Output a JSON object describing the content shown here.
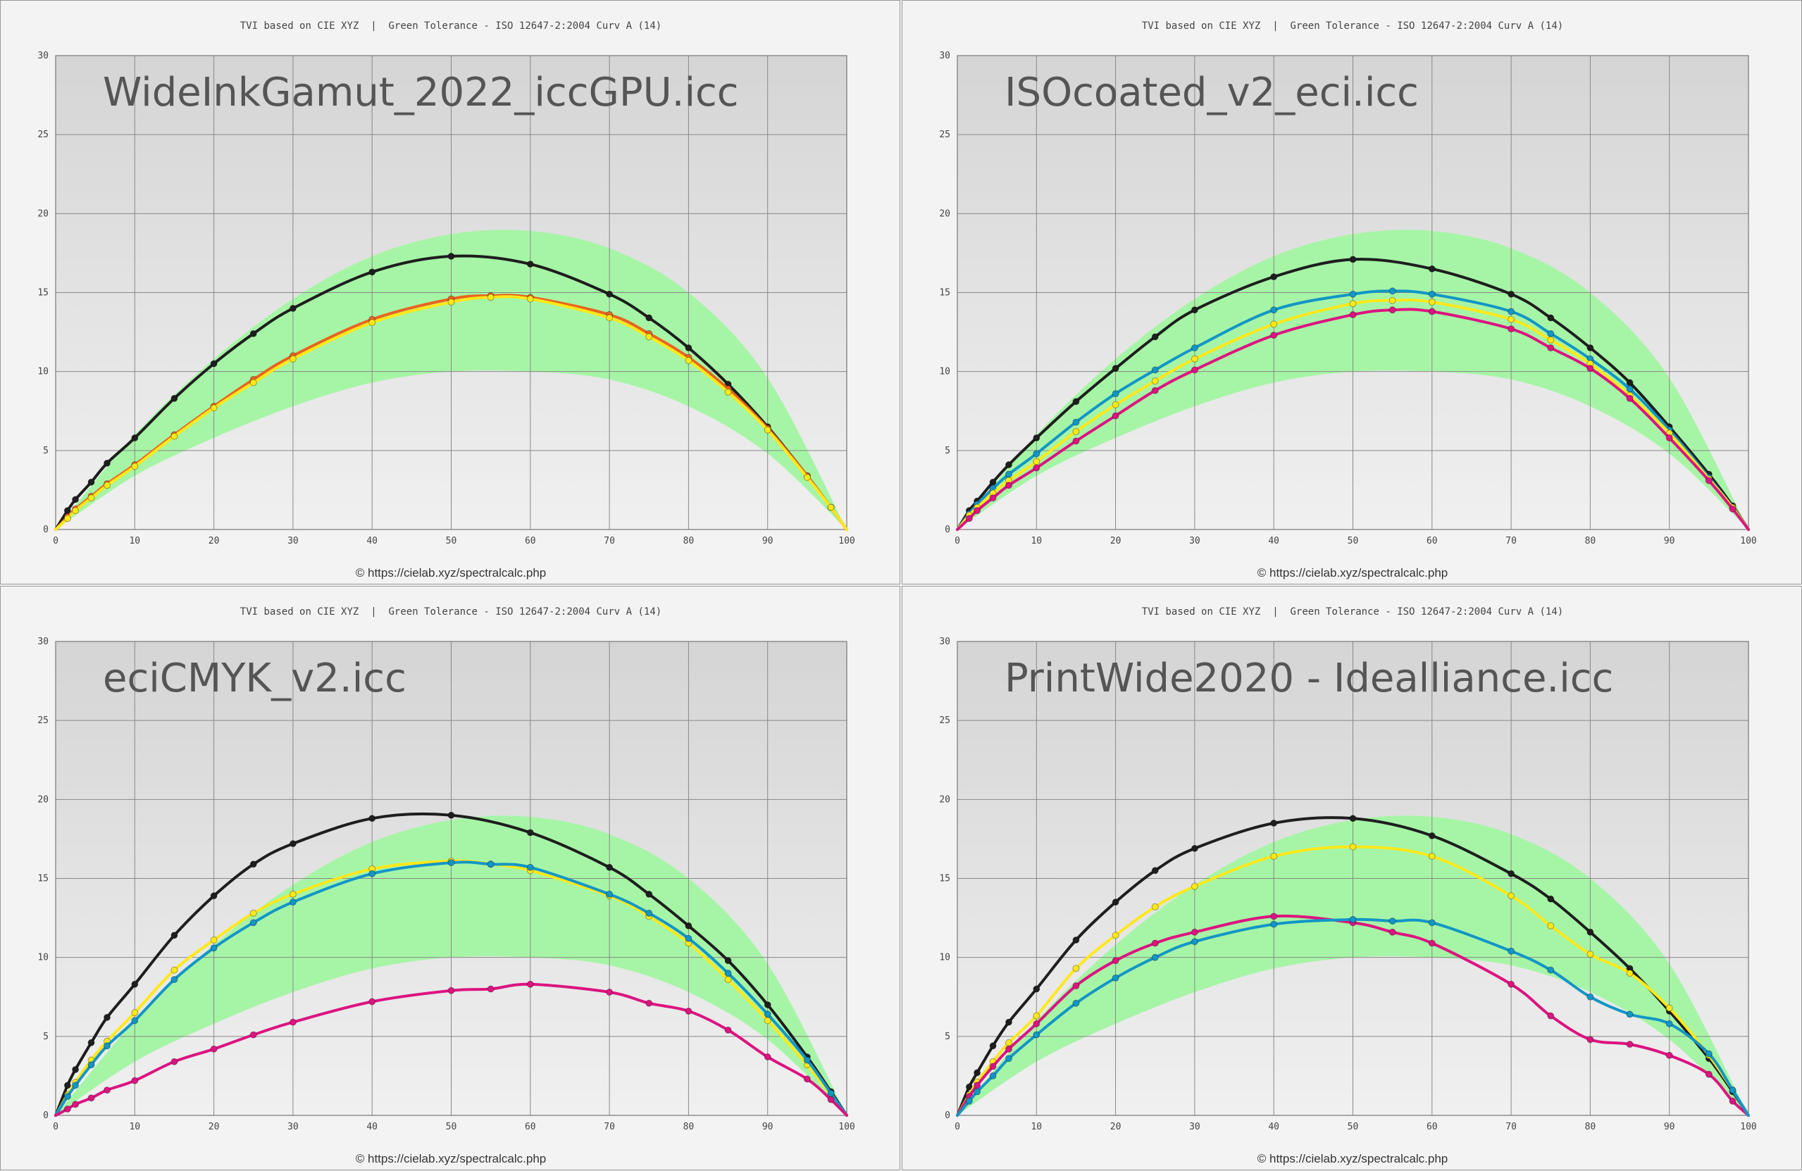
{
  "header_text": "TVI based on CIE XYZ  |  Green Tolerance - ISO 12647-2:2004 Curv A (14)",
  "credit_text": "© https://cielab.xyz/spectralcalc.php",
  "x_ticks": [
    0,
    10,
    20,
    30,
    40,
    50,
    60,
    70,
    80,
    90,
    100
  ],
  "y_ticks": [
    0,
    5,
    10,
    15,
    20,
    25,
    30
  ],
  "colors": {
    "black": "#1e1e1e",
    "cyan": "#1296c6",
    "magenta": "#dc1480",
    "yellow": "#ffe81a",
    "orange_line": "#e8641e",
    "tolerance": "#a6f5a6",
    "plot_top": "#d5d5d5",
    "plot_bottom": "#f0f0f0",
    "gridline": "#888888"
  },
  "chart_data": [
    {
      "type": "line",
      "title": "WideInkGamut_2022_iccGPU.icc",
      "xlim": [
        0,
        100
      ],
      "ylim": [
        0,
        30
      ],
      "tolerance_band": {
        "x": [
          0,
          10,
          20,
          30,
          40,
          50,
          60,
          70,
          80,
          90,
          100
        ],
        "lower": [
          0,
          3.4,
          5.8,
          7.8,
          9.3,
          10.0,
          10.0,
          9.5,
          7.8,
          4.8,
          0
        ],
        "upper": [
          0,
          6.0,
          10.8,
          14.6,
          17.3,
          18.7,
          18.9,
          17.8,
          15.0,
          9.6,
          0
        ]
      },
      "series": [
        {
          "color": "black",
          "x": [
            0,
            1.5,
            2.5,
            4.5,
            6.5,
            10,
            15,
            20,
            25,
            30,
            40,
            50,
            60,
            70,
            75,
            80,
            85,
            90,
            95,
            98,
            100
          ],
          "y": [
            0,
            1.2,
            1.9,
            3.0,
            4.2,
            5.8,
            8.3,
            10.5,
            12.4,
            14.0,
            16.3,
            17.3,
            16.8,
            14.9,
            13.4,
            11.5,
            9.2,
            6.5,
            3.4,
            1.4,
            0
          ]
        },
        {
          "color": "orange_line",
          "x": [
            0,
            1.5,
            2.5,
            4.5,
            6.5,
            10,
            15,
            20,
            25,
            30,
            40,
            50,
            55,
            60,
            70,
            75,
            80,
            85,
            90,
            95,
            98,
            100
          ],
          "y": [
            0,
            0.8,
            1.3,
            2.1,
            2.9,
            4.1,
            6.0,
            7.8,
            9.5,
            11.0,
            13.3,
            14.6,
            14.8,
            14.7,
            13.6,
            12.4,
            10.9,
            8.9,
            6.4,
            3.4,
            1.4,
            0
          ]
        },
        {
          "color": "yellow",
          "x": [
            0,
            1.5,
            2.5,
            4.5,
            6.5,
            10,
            15,
            20,
            25,
            30,
            40,
            50,
            55,
            60,
            70,
            75,
            80,
            85,
            90,
            95,
            98,
            100
          ],
          "y": [
            0,
            0.7,
            1.2,
            2.0,
            2.8,
            4.0,
            5.9,
            7.7,
            9.3,
            10.8,
            13.1,
            14.4,
            14.7,
            14.6,
            13.4,
            12.2,
            10.7,
            8.7,
            6.3,
            3.3,
            1.4,
            0
          ]
        }
      ]
    },
    {
      "type": "line",
      "title": "ISOcoated_v2_eci.icc",
      "xlim": [
        0,
        100
      ],
      "ylim": [
        0,
        30
      ],
      "tolerance_band": {
        "x": [
          0,
          10,
          20,
          30,
          40,
          50,
          60,
          70,
          80,
          90,
          100
        ],
        "lower": [
          0,
          3.4,
          5.8,
          7.8,
          9.3,
          10.0,
          10.0,
          9.5,
          7.8,
          4.8,
          0
        ],
        "upper": [
          0,
          6.0,
          10.8,
          14.6,
          17.3,
          18.7,
          18.9,
          17.8,
          15.0,
          9.6,
          0
        ]
      },
      "series": [
        {
          "color": "black",
          "x": [
            0,
            1.5,
            2.5,
            4.5,
            6.5,
            10,
            15,
            20,
            25,
            30,
            40,
            50,
            60,
            70,
            75,
            80,
            85,
            90,
            95,
            98,
            100
          ],
          "y": [
            0,
            1.2,
            1.8,
            3.0,
            4.1,
            5.8,
            8.1,
            10.2,
            12.2,
            13.9,
            16.0,
            17.1,
            16.5,
            14.9,
            13.4,
            11.5,
            9.3,
            6.5,
            3.5,
            1.5,
            0
          ]
        },
        {
          "color": "cyan",
          "x": [
            0,
            1.5,
            2.5,
            4.5,
            6.5,
            10,
            15,
            20,
            25,
            30,
            40,
            50,
            55,
            60,
            70,
            75,
            80,
            85,
            90,
            95,
            98,
            100
          ],
          "y": [
            0,
            1.0,
            1.6,
            2.6,
            3.5,
            4.8,
            6.8,
            8.6,
            10.1,
            11.5,
            13.9,
            14.9,
            15.1,
            14.9,
            13.8,
            12.4,
            10.8,
            8.9,
            6.3,
            3.3,
            1.4,
            0
          ]
        },
        {
          "color": "yellow",
          "x": [
            0,
            1.5,
            2.5,
            4.5,
            6.5,
            10,
            15,
            20,
            25,
            30,
            40,
            50,
            55,
            60,
            70,
            75,
            80,
            85,
            90,
            95,
            98,
            100
          ],
          "y": [
            0,
            0.9,
            1.4,
            2.3,
            3.1,
            4.3,
            6.2,
            7.9,
            9.4,
            10.8,
            13.0,
            14.3,
            14.5,
            14.4,
            13.3,
            12.0,
            10.5,
            8.5,
            6.1,
            3.2,
            1.4,
            0
          ]
        },
        {
          "color": "magenta",
          "x": [
            0,
            1.5,
            2.5,
            4.5,
            6.5,
            10,
            15,
            20,
            25,
            30,
            40,
            50,
            55,
            60,
            70,
            75,
            80,
            85,
            90,
            95,
            98,
            100
          ],
          "y": [
            0,
            0.7,
            1.2,
            2.0,
            2.8,
            3.9,
            5.6,
            7.2,
            8.8,
            10.1,
            12.3,
            13.6,
            13.9,
            13.8,
            12.7,
            11.5,
            10.2,
            8.3,
            5.8,
            3.1,
            1.3,
            0
          ]
        }
      ]
    },
    {
      "type": "line",
      "title": "eciCMYK_v2.icc",
      "xlim": [
        0,
        100
      ],
      "ylim": [
        0,
        30
      ],
      "tolerance_band": {
        "x": [
          0,
          10,
          20,
          30,
          40,
          50,
          60,
          70,
          80,
          90,
          100
        ],
        "lower": [
          0,
          3.4,
          5.8,
          7.8,
          9.3,
          10.0,
          10.0,
          9.5,
          7.8,
          4.8,
          0
        ],
        "upper": [
          0,
          6.0,
          10.8,
          14.6,
          17.3,
          18.7,
          18.9,
          17.8,
          15.0,
          9.6,
          0
        ]
      },
      "series": [
        {
          "color": "black",
          "x": [
            0,
            1.5,
            2.5,
            4.5,
            6.5,
            10,
            15,
            20,
            25,
            30,
            40,
            50,
            60,
            70,
            75,
            80,
            85,
            90,
            95,
            98,
            100
          ],
          "y": [
            0,
            1.9,
            2.9,
            4.6,
            6.2,
            8.3,
            11.4,
            13.9,
            15.9,
            17.2,
            18.8,
            19.0,
            17.9,
            15.7,
            14.0,
            12.0,
            9.8,
            7.0,
            3.7,
            1.5,
            0
          ]
        },
        {
          "color": "yellow",
          "x": [
            0,
            1.5,
            2.5,
            4.5,
            6.5,
            10,
            15,
            20,
            25,
            30,
            40,
            50,
            55,
            60,
            70,
            75,
            80,
            85,
            90,
            95,
            98,
            100
          ],
          "y": [
            0,
            1.3,
            2.1,
            3.5,
            4.7,
            6.5,
            9.2,
            11.1,
            12.8,
            14.0,
            15.6,
            16.1,
            15.9,
            15.5,
            13.9,
            12.6,
            10.9,
            8.6,
            6.0,
            3.2,
            1.3,
            0
          ]
        },
        {
          "color": "cyan",
          "x": [
            0,
            1.5,
            2.5,
            4.5,
            6.5,
            10,
            15,
            20,
            25,
            30,
            40,
            50,
            55,
            60,
            70,
            75,
            80,
            85,
            90,
            95,
            98,
            100
          ],
          "y": [
            0,
            1.2,
            1.9,
            3.2,
            4.4,
            6.0,
            8.6,
            10.6,
            12.2,
            13.5,
            15.3,
            16.0,
            15.9,
            15.7,
            14.0,
            12.8,
            11.2,
            9.0,
            6.4,
            3.5,
            1.4,
            0
          ]
        },
        {
          "color": "magenta",
          "x": [
            0,
            1.5,
            2.5,
            4.5,
            6.5,
            10,
            15,
            20,
            25,
            30,
            40,
            50,
            55,
            60,
            70,
            75,
            80,
            85,
            90,
            95,
            98,
            100
          ],
          "y": [
            0,
            0.4,
            0.7,
            1.1,
            1.6,
            2.2,
            3.4,
            4.2,
            5.1,
            5.9,
            7.2,
            7.9,
            8.0,
            8.3,
            7.8,
            7.1,
            6.6,
            5.4,
            3.7,
            2.3,
            1.0,
            0
          ]
        }
      ]
    },
    {
      "type": "line",
      "title": "PrintWide2020 - Idealliance.icc",
      "xlim": [
        0,
        100
      ],
      "ylim": [
        0,
        30
      ],
      "tolerance_band": {
        "x": [
          0,
          10,
          20,
          30,
          40,
          50,
          60,
          70,
          80,
          90,
          100
        ],
        "lower": [
          0,
          3.4,
          5.8,
          7.8,
          9.3,
          10.0,
          10.0,
          9.5,
          7.8,
          4.8,
          0
        ],
        "upper": [
          0,
          6.0,
          10.8,
          14.6,
          17.3,
          18.7,
          18.9,
          17.8,
          15.0,
          9.6,
          0
        ]
      },
      "series": [
        {
          "color": "black",
          "x": [
            0,
            1.5,
            2.5,
            4.5,
            6.5,
            10,
            15,
            20,
            25,
            30,
            40,
            50,
            60,
            70,
            75,
            80,
            85,
            90,
            95,
            98,
            100
          ],
          "y": [
            0,
            1.8,
            2.7,
            4.4,
            5.9,
            8.0,
            11.1,
            13.5,
            15.5,
            16.9,
            18.5,
            18.8,
            17.7,
            15.3,
            13.7,
            11.6,
            9.3,
            6.6,
            3.6,
            1.5,
            0
          ]
        },
        {
          "color": "yellow",
          "x": [
            0,
            1.5,
            2.5,
            4.5,
            6.5,
            10,
            15,
            20,
            25,
            30,
            40,
            50,
            60,
            70,
            75,
            80,
            85,
            90,
            95,
            98,
            100
          ],
          "y": [
            0,
            1.3,
            2.1,
            3.4,
            4.6,
            6.3,
            9.3,
            11.4,
            13.2,
            14.5,
            16.4,
            17.0,
            16.4,
            13.9,
            12.0,
            10.2,
            9.0,
            6.8,
            3.8,
            1.6,
            0
          ]
        },
        {
          "color": "magenta",
          "x": [
            0,
            1.5,
            2.5,
            4.5,
            6.5,
            10,
            15,
            20,
            25,
            30,
            40,
            50,
            55,
            60,
            70,
            75,
            80,
            85,
            90,
            95,
            98,
            100
          ],
          "y": [
            0,
            1.2,
            1.9,
            3.1,
            4.2,
            5.8,
            8.2,
            9.8,
            10.9,
            11.6,
            12.6,
            12.2,
            11.6,
            10.9,
            8.3,
            6.3,
            4.8,
            4.5,
            3.8,
            2.6,
            0.9,
            0
          ]
        },
        {
          "color": "cyan",
          "x": [
            0,
            1.5,
            2.5,
            4.5,
            6.5,
            10,
            15,
            20,
            25,
            30,
            40,
            50,
            55,
            60,
            70,
            75,
            80,
            85,
            90,
            95,
            98,
            100
          ],
          "y": [
            0,
            0.9,
            1.5,
            2.5,
            3.6,
            5.1,
            7.1,
            8.7,
            10.0,
            11.0,
            12.1,
            12.4,
            12.3,
            12.2,
            10.4,
            9.2,
            7.5,
            6.4,
            5.8,
            3.9,
            1.6,
            0
          ]
        }
      ]
    }
  ]
}
